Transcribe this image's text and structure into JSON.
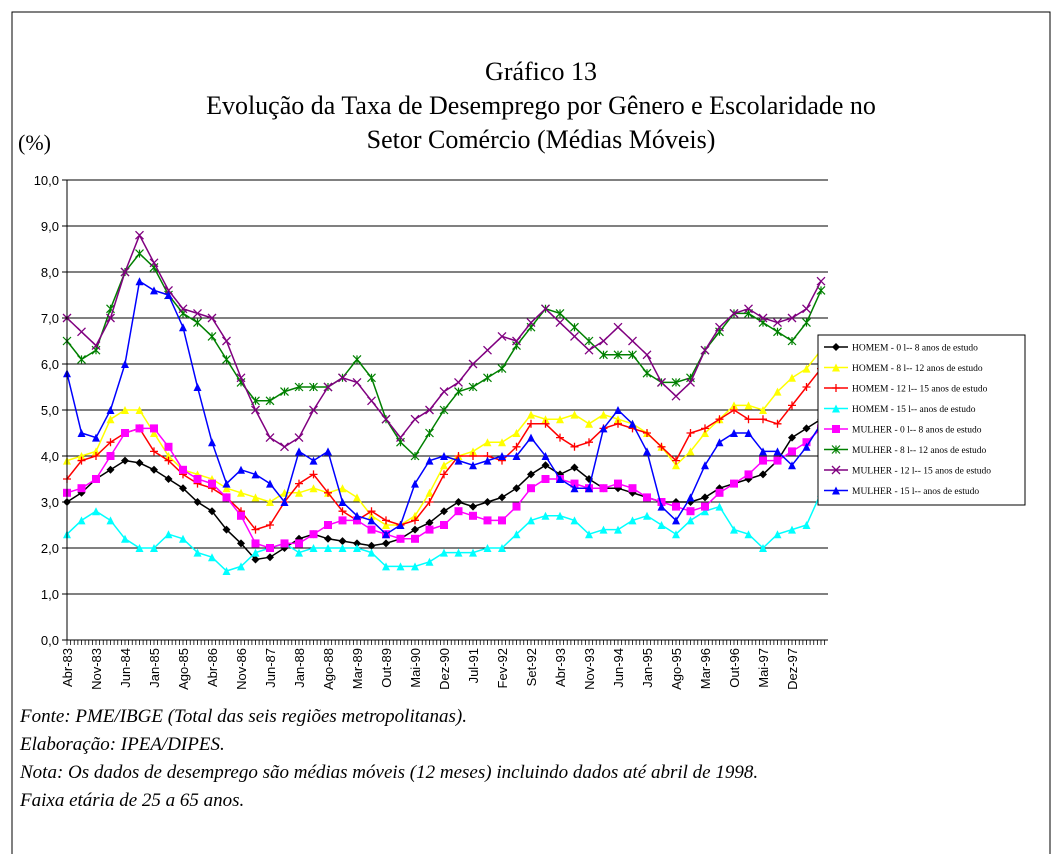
{
  "chart_data": {
    "type": "line",
    "title": "Gráfico 13",
    "subtitle": [
      "Evolução da Taxa de Desemprego por Gênero e Escolaridade no",
      "Setor Comércio (Médias Móveis)"
    ],
    "y_label": "(%)",
    "notes": [
      "Fonte: PME/IBGE (Total das seis regiões metropolitanas).",
      "Elaboração: IPEA/DIPES.",
      "Nota: Os dados de desemprego são médias móveis (12 meses) incluindo dados até abril de 1998.",
      "Faixa etária de 25 a 65 anos."
    ],
    "categories": [
      "Abr-83",
      null,
      "Nov-83",
      null,
      "Jun-84",
      null,
      "Jan-85",
      null,
      "Ago-85",
      null,
      "Abr-86",
      null,
      "Nov-86",
      null,
      "Jun-87",
      null,
      "Jan-88",
      null,
      "Ago-88",
      null,
      "Mar-89",
      null,
      "Out-89",
      null,
      "Mai-90",
      null,
      "Dez-90",
      null,
      "Jul-91",
      null,
      "Fev-92",
      null,
      "Set-92",
      null,
      "Abr-93",
      null,
      "Nov-93",
      null,
      "Jun-94",
      null,
      "Jan-95",
      null,
      "Ago-95",
      null,
      "Mar-96",
      null,
      "Out-96",
      null,
      "Mai-97",
      null,
      "Dez-97",
      null,
      null
    ],
    "ylim": [
      0,
      10
    ],
    "yticks": [
      {
        "value": 0,
        "label": "0,0"
      },
      {
        "value": 1,
        "label": "1,0"
      },
      {
        "value": 2,
        "label": "2,0"
      },
      {
        "value": 3,
        "label": "3,0"
      },
      {
        "value": 4,
        "label": "4,0"
      },
      {
        "value": 5,
        "label": "5,0"
      },
      {
        "value": 6,
        "label": "6,0"
      },
      {
        "value": 7,
        "label": "7,0"
      },
      {
        "value": 8,
        "label": "8,0"
      },
      {
        "value": 9,
        "label": "9,0"
      },
      {
        "value": 10,
        "label": "10,0"
      }
    ],
    "grid": true,
    "legend": "right",
    "series": [
      {
        "name": "HOMEM - 0 l-- 8 anos de estudo",
        "color": "#000000",
        "marker": "diamond",
        "values": [
          3.0,
          3.2,
          3.5,
          3.7,
          3.9,
          3.85,
          3.7,
          3.5,
          3.3,
          3.0,
          2.8,
          2.4,
          2.1,
          1.75,
          1.8,
          2.0,
          2.2,
          2.3,
          2.2,
          2.15,
          2.1,
          2.05,
          2.1,
          2.2,
          2.4,
          2.55,
          2.8,
          3.0,
          2.9,
          3.0,
          3.1,
          3.3,
          3.6,
          3.8,
          3.6,
          3.75,
          3.5,
          3.3,
          3.3,
          3.2,
          3.1,
          3.0,
          3.0,
          3.0,
          3.1,
          3.3,
          3.4,
          3.5,
          3.6,
          3.9,
          4.4,
          4.6,
          4.8
        ]
      },
      {
        "name": "HOMEM - 8 l-- 12 anos de estudo",
        "color": "#ffff00",
        "marker": "triangle",
        "values": [
          3.9,
          4.0,
          4.1,
          4.8,
          5.0,
          5.0,
          4.5,
          4.0,
          3.7,
          3.6,
          3.5,
          3.3,
          3.2,
          3.1,
          3.0,
          3.2,
          3.2,
          3.3,
          3.2,
          3.3,
          3.1,
          2.7,
          2.5,
          2.5,
          2.7,
          3.2,
          3.8,
          4.0,
          4.1,
          4.3,
          4.3,
          4.5,
          4.9,
          4.8,
          4.8,
          4.9,
          4.7,
          4.9,
          4.8,
          4.7,
          4.5,
          4.2,
          3.8,
          4.1,
          4.5,
          4.8,
          5.1,
          5.1,
          5.0,
          5.4,
          5.7,
          5.9,
          6.3
        ]
      },
      {
        "name": "HOMEM - 12 l-- 15 anos de estudo",
        "color": "#ff0000",
        "marker": "plus",
        "values": [
          3.5,
          3.9,
          4.0,
          4.3,
          4.5,
          4.6,
          4.1,
          3.9,
          3.6,
          3.4,
          3.3,
          3.1,
          2.8,
          2.4,
          2.5,
          3.0,
          3.4,
          3.6,
          3.2,
          2.8,
          2.6,
          2.8,
          2.6,
          2.5,
          2.6,
          3.0,
          3.6,
          4.0,
          4.0,
          4.0,
          3.9,
          4.2,
          4.7,
          4.7,
          4.4,
          4.2,
          4.3,
          4.6,
          4.7,
          4.6,
          4.5,
          4.2,
          3.9,
          4.5,
          4.6,
          4.8,
          5.0,
          4.8,
          4.8,
          4.7,
          5.1,
          5.5,
          5.9
        ]
      },
      {
        "name": "HOMEM - 15 l-- anos de estudo",
        "color": "#00ffff",
        "marker": "triangle",
        "values": [
          2.3,
          2.6,
          2.8,
          2.6,
          2.2,
          2.0,
          2.0,
          2.3,
          2.2,
          1.9,
          1.8,
          1.5,
          1.6,
          1.9,
          2.0,
          2.1,
          1.9,
          2.0,
          2.0,
          2.0,
          2.0,
          1.9,
          1.6,
          1.6,
          1.6,
          1.7,
          1.9,
          1.9,
          1.9,
          2.0,
          2.0,
          2.3,
          2.6,
          2.7,
          2.7,
          2.6,
          2.3,
          2.4,
          2.4,
          2.6,
          2.7,
          2.5,
          2.3,
          2.6,
          2.8,
          2.9,
          2.4,
          2.3,
          2.0,
          2.3,
          2.4,
          2.5,
          3.2
        ]
      },
      {
        "name": "MULHER - 0 l-- 8 anos de estudo",
        "color": "#ff00ff",
        "marker": "square",
        "values": [
          3.2,
          3.3,
          3.5,
          4.0,
          4.5,
          4.6,
          4.6,
          4.2,
          3.7,
          3.5,
          3.4,
          3.1,
          2.7,
          2.1,
          2.0,
          2.1,
          2.1,
          2.3,
          2.5,
          2.6,
          2.6,
          2.4,
          2.3,
          2.2,
          2.2,
          2.4,
          2.5,
          2.8,
          2.7,
          2.6,
          2.6,
          2.9,
          3.3,
          3.5,
          3.5,
          3.4,
          3.3,
          3.3,
          3.4,
          3.3,
          3.1,
          3.0,
          2.9,
          2.8,
          2.9,
          3.2,
          3.4,
          3.6,
          3.9,
          3.9,
          4.1,
          4.3,
          4.6
        ]
      },
      {
        "name": "MULHER - 8 l-- 12 anos de estudo",
        "color": "#008000",
        "marker": "star",
        "values": [
          6.5,
          6.1,
          6.3,
          7.2,
          8.0,
          8.4,
          8.1,
          7.5,
          7.1,
          6.9,
          6.6,
          6.1,
          5.6,
          5.2,
          5.2,
          5.4,
          5.5,
          5.5,
          5.5,
          5.7,
          6.1,
          5.7,
          4.8,
          4.3,
          4.0,
          4.5,
          5.0,
          5.4,
          5.5,
          5.7,
          5.9,
          6.4,
          6.8,
          7.2,
          7.1,
          6.8,
          6.5,
          6.2,
          6.2,
          6.2,
          5.8,
          5.6,
          5.6,
          5.7,
          6.3,
          6.7,
          7.1,
          7.1,
          6.9,
          6.7,
          6.5,
          6.9,
          7.6
        ]
      },
      {
        "name": "MULHER - 12 l-- 15 anos de estudo",
        "color": "#800080",
        "marker": "x",
        "values": [
          7.0,
          6.7,
          6.4,
          7.0,
          8.0,
          8.8,
          8.2,
          7.6,
          7.2,
          7.1,
          7.0,
          6.5,
          5.7,
          5.0,
          4.4,
          4.2,
          4.4,
          5.0,
          5.5,
          5.7,
          5.6,
          5.2,
          4.8,
          4.4,
          4.8,
          5.0,
          5.4,
          5.6,
          6.0,
          6.3,
          6.6,
          6.5,
          6.9,
          7.2,
          6.9,
          6.6,
          6.3,
          6.5,
          6.8,
          6.5,
          6.2,
          5.6,
          5.3,
          5.6,
          6.3,
          6.8,
          7.1,
          7.2,
          7.0,
          6.9,
          7.0,
          7.2,
          7.8
        ]
      },
      {
        "name": "MULHER - 15 l-- anos de estudo",
        "color": "#0000ff",
        "marker": "triangle",
        "values": [
          5.8,
          4.5,
          4.4,
          5.0,
          6.0,
          7.8,
          7.6,
          7.5,
          6.8,
          5.5,
          4.3,
          3.4,
          3.7,
          3.6,
          3.4,
          3.0,
          4.1,
          3.9,
          4.1,
          3.0,
          2.7,
          2.6,
          2.3,
          2.5,
          3.4,
          3.9,
          4.0,
          3.9,
          3.8,
          3.9,
          4.0,
          4.0,
          4.4,
          4.0,
          3.5,
          3.3,
          3.3,
          4.6,
          5.0,
          4.7,
          4.1,
          2.9,
          2.6,
          3.1,
          3.8,
          4.3,
          4.5,
          4.5,
          4.1,
          4.1,
          3.8,
          4.2,
          4.7
        ]
      }
    ]
  }
}
